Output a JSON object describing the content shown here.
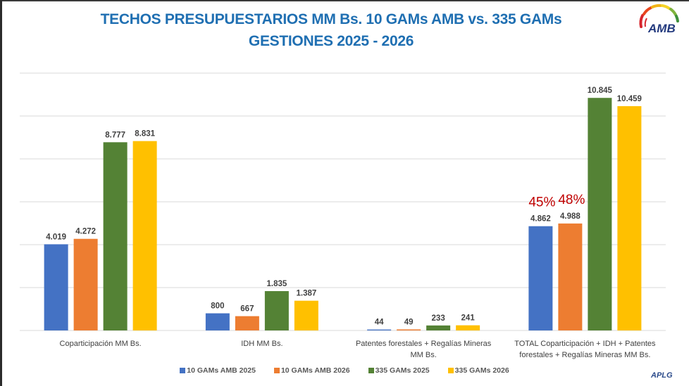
{
  "title": {
    "line1": "TECHOS PRESUPUESTARIOS MM Bs. 10 GAMs AMB vs. 335 GAMs",
    "line2": "GESTIONES 2025 - 2026"
  },
  "logo": {
    "text": "AMB",
    "icon": "amb-rainbow-logo-icon"
  },
  "footer": {
    "brand": "APLG"
  },
  "chart_data": {
    "type": "bar",
    "title": "TECHOS PRESUPUESTARIOS MM Bs. 10 GAMs AMB vs. 335 GAMs GESTIONES 2025 - 2026",
    "xlabel": "",
    "ylabel": "",
    "ylim": [
      0,
      12000
    ],
    "grid": true,
    "y_ticks_shown": false,
    "legend_position": "bottom",
    "categories": [
      [
        "Coparticipación MM Bs."
      ],
      [
        "IDH MM Bs."
      ],
      [
        "Patentes forestales + Regalías Mineras",
        "MM Bs."
      ],
      [
        "TOTAL Coparticipación + IDH + Patentes",
        "forestales + Regalías Mineras MM Bs."
      ]
    ],
    "series": [
      {
        "name": "10 GAMs AMB 2025",
        "color": "#4472c4",
        "values": [
          4019,
          800,
          44,
          4862
        ],
        "labels": [
          "4.019",
          "800",
          "44",
          "4.862"
        ]
      },
      {
        "name": "10 GAMs AMB 2026",
        "color": "#ed7d31",
        "values": [
          4272,
          667,
          49,
          4988
        ],
        "labels": [
          "4.272",
          "667",
          "49",
          "4.988"
        ]
      },
      {
        "name": "335 GAMs 2025",
        "color": "#548235",
        "values": [
          8777,
          1835,
          233,
          10845
        ],
        "labels": [
          "8.777",
          "1.835",
          "233",
          "10.845"
        ]
      },
      {
        "name": "335 GAMs 2026",
        "color": "#ffc000",
        "values": [
          8831,
          1387,
          241,
          10459
        ],
        "labels": [
          "8.831",
          "1.387",
          "241",
          "10.459"
        ]
      }
    ],
    "annotations": [
      {
        "text": "45%",
        "category_index": 3,
        "series_index": 0,
        "color": "#c00000"
      },
      {
        "text": "48%",
        "category_index": 3,
        "series_index": 1,
        "color": "#c00000"
      }
    ]
  }
}
